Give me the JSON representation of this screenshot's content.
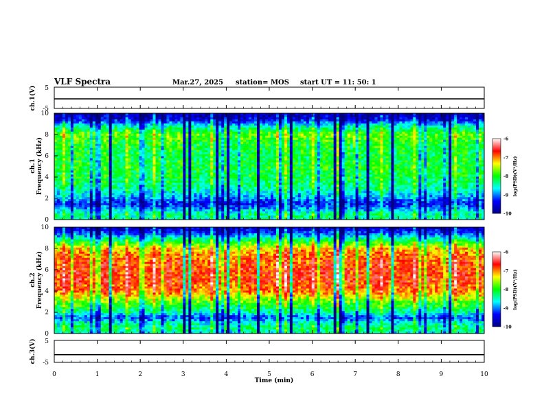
{
  "header": {
    "title": "VLF Spectra",
    "date": "Mar.27, 2025",
    "station": "station= MOS",
    "start": "start  UT =   11: 50: 1"
  },
  "chart_data": [
    {
      "type": "line",
      "panel": "ch1-waveform",
      "ylabel": "ch.1(V)",
      "ylim": [
        -5,
        5
      ],
      "yticks": [
        "5",
        "-5"
      ],
      "x": [
        0,
        10
      ],
      "series": [
        {
          "values": [
            -0.5,
            -0.5
          ]
        }
      ]
    },
    {
      "type": "heatmap",
      "panel": "ch1-spectrogram",
      "ylabel_top": "ch.1",
      "ylabel": "Frequency (kHz)",
      "ylim": [
        0,
        10
      ],
      "yticks": [
        "0",
        "2",
        "4",
        "6",
        "8",
        "10"
      ],
      "colorbar": {
        "label": "log(PSD)(V²/Hz)",
        "range": [
          -10,
          -6
        ],
        "ticks": [
          "-6",
          "-7",
          "-8",
          "-9",
          "-10"
        ]
      },
      "profile_freq_khz": [
        0,
        0.5,
        1,
        1.5,
        2,
        3,
        4,
        5,
        6,
        7,
        8,
        8.8,
        9.4,
        10
      ],
      "profile_log_psd": [
        -8.5,
        -8.4,
        -8.9,
        -9.4,
        -9.0,
        -8.4,
        -8.2,
        -8.1,
        -8.2,
        -8.1,
        -7.8,
        -8.6,
        -9.5,
        -9.8
      ]
    },
    {
      "type": "heatmap",
      "panel": "ch2-spectrogram",
      "ylabel_top": "ch.2",
      "ylabel": "Frequency (kHz)",
      "ylim": [
        0,
        10
      ],
      "yticks": [
        "0",
        "2",
        "4",
        "6",
        "8",
        "10"
      ],
      "colorbar": {
        "label": "log(PSD)(V²/Hz)",
        "range": [
          -10,
          -6
        ],
        "ticks": [
          "-6",
          "-7",
          "-8",
          "-9",
          "-10"
        ]
      },
      "profile_freq_khz": [
        0,
        0.5,
        1,
        1.5,
        2,
        3,
        4,
        5,
        6,
        7,
        8,
        8.8,
        9.4,
        10
      ],
      "profile_log_psd": [
        -8.6,
        -8.3,
        -8.6,
        -9.2,
        -8.5,
        -7.8,
        -7.0,
        -6.8,
        -6.8,
        -6.9,
        -7.3,
        -8.3,
        -9.2,
        -9.7
      ]
    },
    {
      "type": "line",
      "panel": "ch3-waveform",
      "ylabel": "ch.3(V)",
      "ylim": [
        -5,
        5
      ],
      "yticks": [
        "5",
        "-5"
      ],
      "x": [
        0,
        10
      ],
      "series": [
        {
          "values": [
            -1.5,
            -1.5
          ]
        }
      ]
    }
  ],
  "xaxis": {
    "label": "Time (min)",
    "range": [
      0,
      10
    ],
    "ticks": [
      "0",
      "1",
      "2",
      "3",
      "4",
      "5",
      "6",
      "7",
      "8",
      "9",
      "10"
    ]
  },
  "colors": {
    "jet_stops": [
      "#00007f",
      "#0000ff",
      "#00ffff",
      "#00ff00",
      "#ffff00",
      "#ff0000",
      "#ffffff"
    ]
  }
}
